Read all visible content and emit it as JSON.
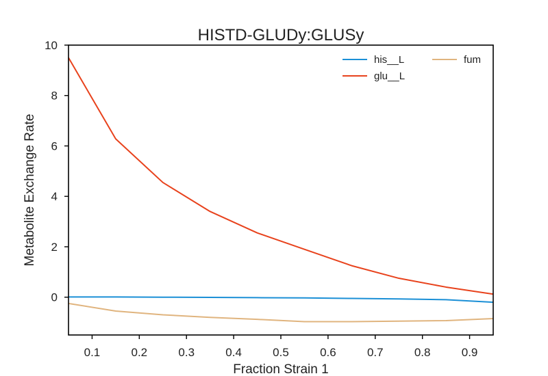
{
  "chart_data": {
    "type": "line",
    "title": "HISTD-GLUDy:GLUSy",
    "xlabel": "Fraction Strain 1",
    "ylabel": "Metabolite Exchange Rate",
    "xlim": [
      0.05,
      0.95
    ],
    "ylim": [
      -1.5,
      10
    ],
    "xticks": [
      0.1,
      0.2,
      0.3,
      0.4,
      0.5,
      0.6,
      0.7,
      0.8,
      0.9
    ],
    "xtick_labels": [
      "0.1",
      "0.2",
      "0.3",
      "0.4",
      "0.5",
      "0.6",
      "0.7",
      "0.8",
      "0.9"
    ],
    "yticks": [
      0,
      2,
      4,
      6,
      8,
      10
    ],
    "ytick_labels": [
      "0",
      "2",
      "4",
      "6",
      "8",
      "10"
    ],
    "grid": false,
    "legend_position": "top-right",
    "x": [
      0.05,
      0.15,
      0.25,
      0.35,
      0.45,
      0.55,
      0.65,
      0.75,
      0.85,
      0.95
    ],
    "series": [
      {
        "name": "his__L",
        "color": "#1a8fd6",
        "values": [
          0.01,
          0.01,
          0.0,
          -0.01,
          -0.02,
          -0.03,
          -0.05,
          -0.07,
          -0.1,
          -0.2
        ]
      },
      {
        "name": "glu__L",
        "color": "#e8421c",
        "values": [
          9.5,
          6.28,
          4.55,
          3.4,
          2.55,
          1.9,
          1.25,
          0.75,
          0.4,
          0.12
        ]
      },
      {
        "name": "fum",
        "color": "#e0b47e",
        "values": [
          -0.25,
          -0.55,
          -0.7,
          -0.8,
          -0.88,
          -0.97,
          -0.97,
          -0.95,
          -0.93,
          -0.85
        ]
      }
    ]
  }
}
